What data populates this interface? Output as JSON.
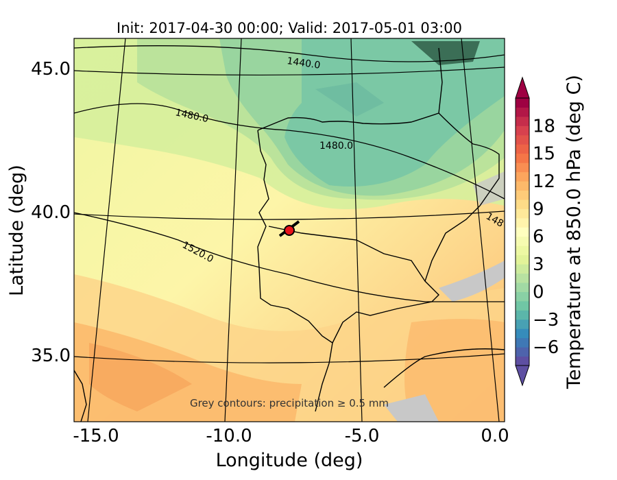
{
  "title": "Init: 2017-04-30 00:00; Valid: 2017-05-01 03:00",
  "xlabel": "Longitude (deg)",
  "ylabel": "Latitude (deg)",
  "x_ticks": [
    "-15.0",
    "-10.0",
    "-5.0",
    "0.0"
  ],
  "y_ticks": [
    "35.0",
    "40.0",
    "45.0"
  ],
  "colorbar": {
    "label": "Temperature at 850.0 hPa (deg C)",
    "ticks": [
      "−6",
      "−3",
      "0",
      "3",
      "6",
      "9",
      "12",
      "15",
      "18"
    ],
    "range": [
      -8,
      21
    ]
  },
  "contour_labels": [
    "1440.0",
    "1480.0",
    "1480.0",
    "1520.0",
    "148"
  ],
  "note": "Grey contours: precipitation ≥ 0.5 mm",
  "marker": {
    "lon": -7.7,
    "lat": 39.4
  },
  "colors": {
    "marker_fill": "#e8141b",
    "land_cold": "#74c5a3",
    "land_warm": "#fbb769"
  }
}
